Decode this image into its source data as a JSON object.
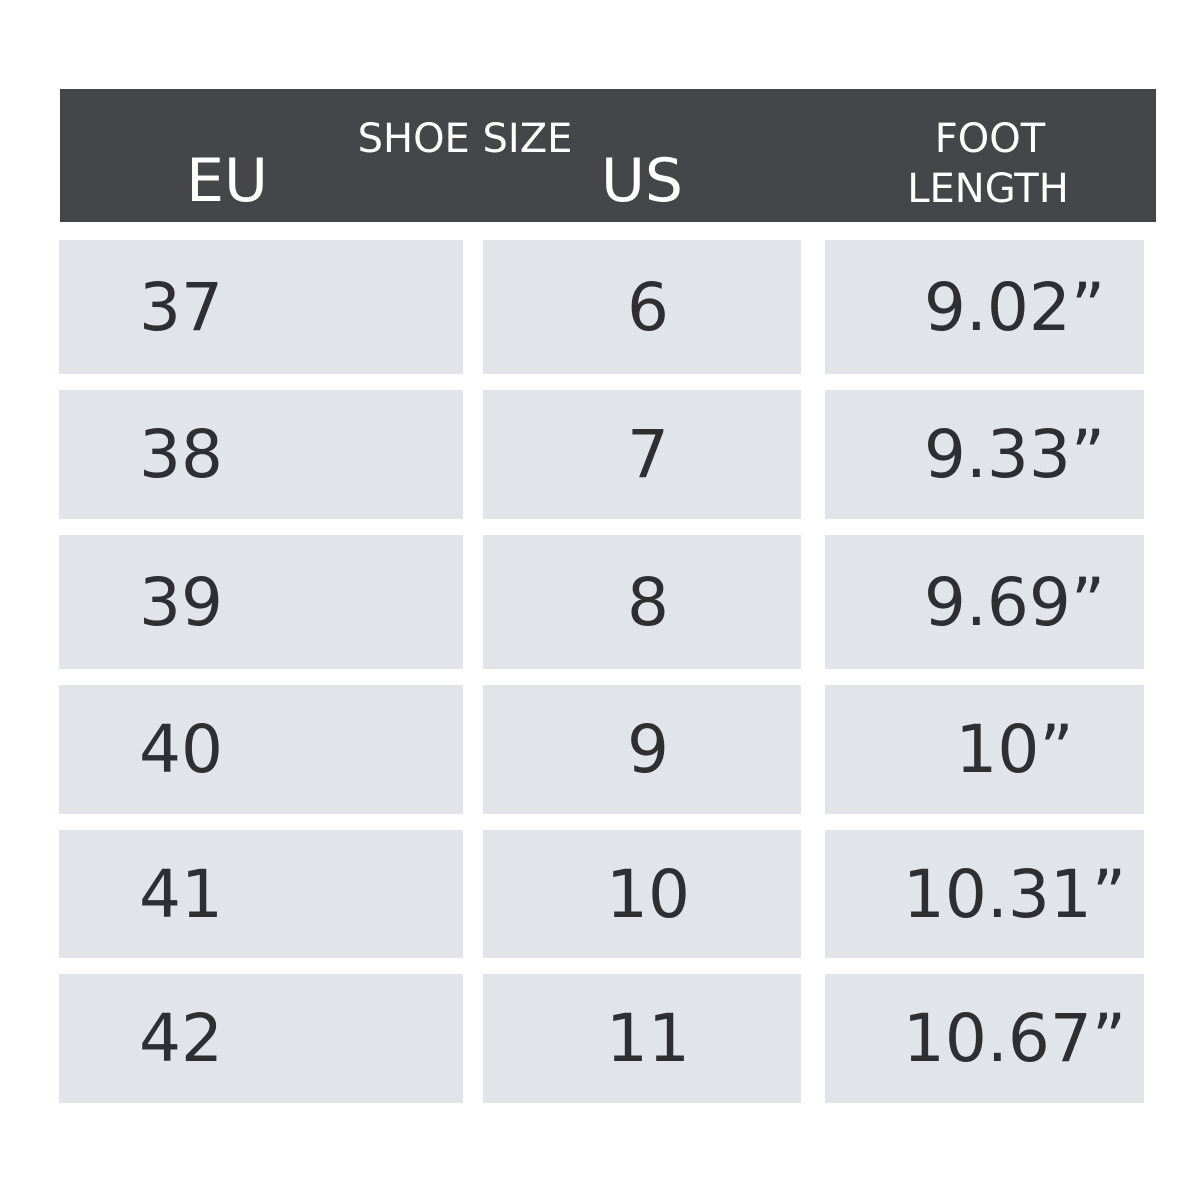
{
  "colors": {
    "header_bg": "#45464a",
    "cell_bg": "#e1e4e9",
    "text": "#2e2f33",
    "header_text": "#ffffff"
  },
  "header": {
    "group_label": "SHOE SIZE",
    "columns": [
      "EU",
      "US"
    ],
    "foot_length_line1": "FOOT",
    "foot_length_line2": "LENGTH"
  },
  "rows": [
    {
      "eu": "37",
      "us": "6",
      "foot": "9.02”"
    },
    {
      "eu": "38",
      "us": "7",
      "foot": "9.33”"
    },
    {
      "eu": "39",
      "us": "8",
      "foot": "9.69”"
    },
    {
      "eu": "40",
      "us": "9",
      "foot": "10”"
    },
    {
      "eu": "41",
      "us": "10",
      "foot": "10.31”"
    },
    {
      "eu": "42",
      "us": "11",
      "foot": "10.67”"
    }
  ]
}
